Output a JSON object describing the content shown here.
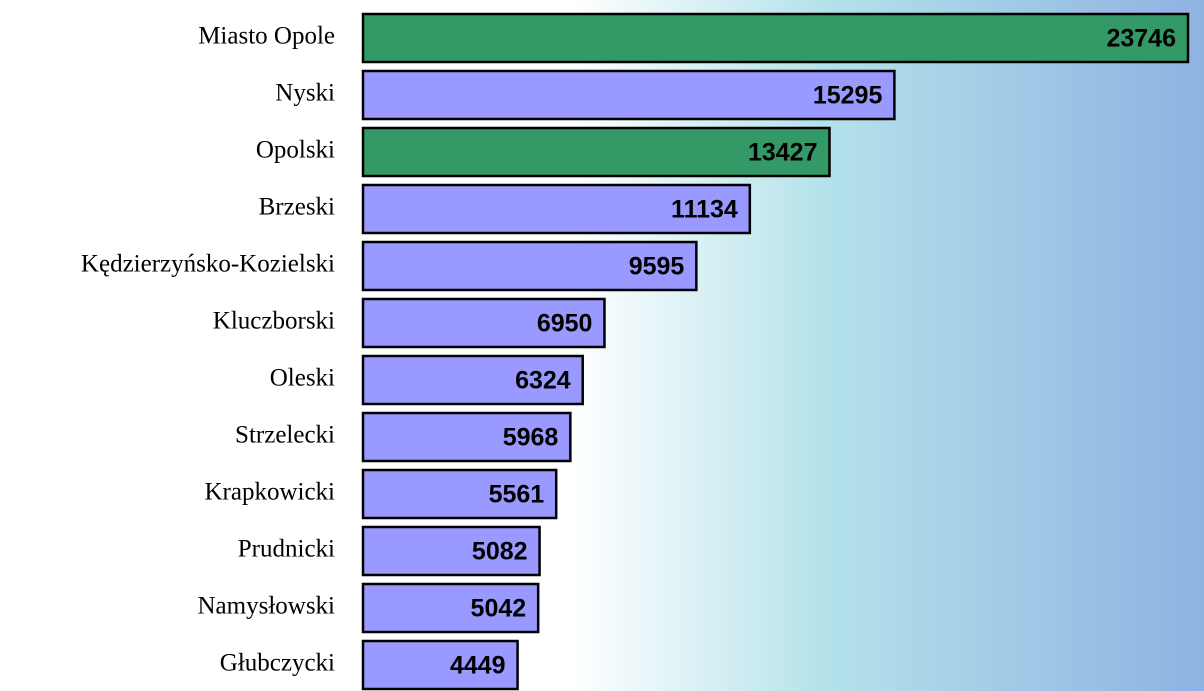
{
  "chart_data": {
    "type": "bar",
    "orientation": "horizontal",
    "categories": [
      "Miasto Opole",
      "Nyski",
      "Opolski",
      "Brzeski",
      "Kędzierzyńsko-Kozielski",
      "Kluczborski",
      "Oleski",
      "Strzelecki",
      "Krapkowicki",
      "Prudnicki",
      "Namysłowski",
      "Głubczycki"
    ],
    "values": [
      23746,
      15295,
      13427,
      11134,
      9595,
      6950,
      6324,
      5968,
      5561,
      5082,
      5042,
      4449
    ],
    "colors": [
      "#339966",
      "#9999ff",
      "#339966",
      "#9999ff",
      "#9999ff",
      "#9999ff",
      "#9999ff",
      "#9999ff",
      "#9999ff",
      "#9999ff",
      "#9999ff",
      "#9999ff"
    ]
  }
}
